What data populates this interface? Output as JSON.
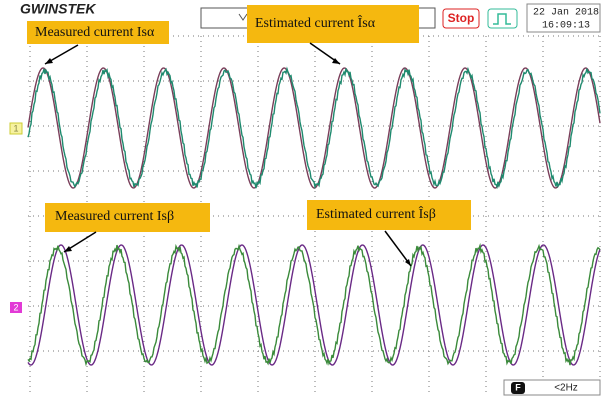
{
  "header": {
    "logo": "GWINSTEK",
    "status": "Stop",
    "date": "22 Jan 2018",
    "time": "16:09:13"
  },
  "channels": [
    "1",
    "2"
  ],
  "annotations": [
    "Measured current Isα",
    "Estimated current Îsα",
    "Measured current Isβ",
    "Estimated current Îsβ"
  ],
  "footer": {
    "filter": "F",
    "frequency": "<2Hz"
  }
}
